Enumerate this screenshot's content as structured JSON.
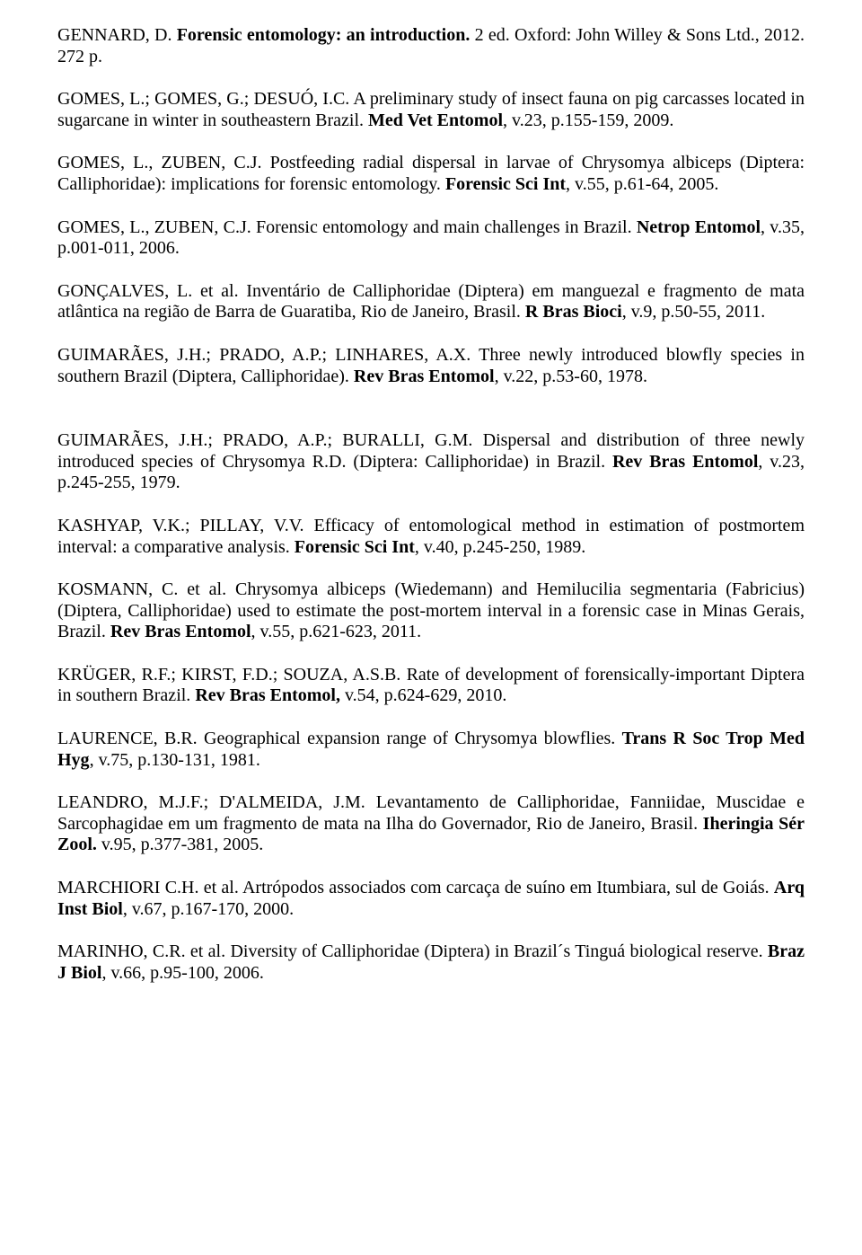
{
  "refs": [
    {
      "a": "GENNARD, D. ",
      "t": "Forensic entomology: an introduction.",
      "r": " 2 ed. Oxford: John Willey & Sons Ltd., 2012. 272 p."
    },
    {
      "a": "GOMES, L.; GOMES, G.; DESUÓ, I.C. A preliminary study of insect fauna on pig carcasses located in sugarcane in winter in southeastern Brazil. ",
      "t": "Med Vet Entomol",
      "r": ", v.23, p.155-159, 2009."
    },
    {
      "a": "GOMES, L., ZUBEN, C.J. Postfeeding radial dispersal in larvae of Chrysomya albiceps (Diptera: Calliphoridae): implications for forensic entomology. ",
      "t": "Forensic Sci Int",
      "r": ", v.55, p.61-64, 2005."
    },
    {
      "a": "GOMES, L., ZUBEN, C.J. Forensic entomology and main challenges in Brazil. ",
      "t": "Netrop Entomol",
      "r": ", v.35, p.001-011, 2006."
    },
    {
      "a": "GONÇALVES, L. et al. Inventário de Calliphoridae (Diptera) em manguezal e fragmento de mata atlântica na região de Barra de Guaratiba, Rio de Janeiro, Brasil. ",
      "t": "R Bras Bioci",
      "r": ", v.9, p.50-55, 2011."
    },
    {
      "a": "GUIMARÃES, J.H.; PRADO, A.P.; LINHARES, A.X. Three newly introduced blowfly species in southern Brazil (Diptera, Calliphoridae). ",
      "t": "Rev Bras Entomol",
      "r": ", v.22, p.53-60, 1978."
    },
    {
      "a": "GUIMARÃES, J.H.; PRADO, A.P.; BURALLI, G.M. Dispersal and distribution of three newly introduced species of Chrysomya R.D. (Diptera: Calliphoridae) in Brazil. ",
      "t": "Rev Bras Entomol",
      "r": ", v.23, p.245-255, 1979."
    },
    {
      "a": "KASHYAP, V.K.; PILLAY, V.V. Efficacy of entomological method in estimation of postmortem interval: a comparative analysis. ",
      "t": "Forensic Sci Int",
      "r": ", v.40, p.245-250, 1989."
    },
    {
      "a": "KOSMANN, C. et al. Chrysomya albiceps (Wiedemann) and Hemilucilia segmentaria (Fabricius) (Diptera, Calliphoridae) used to estimate the post-mortem interval in a forensic case in Minas Gerais, Brazil. ",
      "t": "Rev Bras Entomol",
      "r": ", v.55, p.621-623, 2011."
    },
    {
      "a": "KRÜGER, R.F.; KIRST, F.D.; SOUZA, A.S.B. Rate of development of forensically-important Diptera in southern Brazil. ",
      "t": "Rev Bras Entomol,",
      "r": " v.54, p.624-629, 2010."
    },
    {
      "a": "LAURENCE, B.R. Geographical expansion range of Chrysomya blowflies. ",
      "t": "Trans R Soc Trop Med Hyg",
      "r": ", v.75, p.130-131, 1981."
    },
    {
      "a": "LEANDRO, M.J.F.; D'ALMEIDA, J.M. Levantamento de Calliphoridae, Fanniidae, Muscidae e Sarcophagidae em um fragmento de mata na Ilha do Governador, Rio de Janeiro, Brasil. ",
      "t": "Iheringia Sér Zool.",
      "r": " v.95, p.377-381, 2005."
    },
    {
      "a": "MARCHIORI C.H. et al. Artrópodos associados com carcaça de suíno em Itumbiara, sul de Goiás. ",
      "t": "Arq Inst Biol",
      "r": ", v.67, p.167-170, 2000."
    },
    {
      "a": "MARINHO, C.R. et al. Diversity of Calliphoridae (Diptera) in Brazil´s Tinguá biological reserve. ",
      "t": "Braz J Biol",
      "r": ", v.66, p.95-100, 2006."
    }
  ],
  "style": {
    "gapAfter6": 48
  }
}
